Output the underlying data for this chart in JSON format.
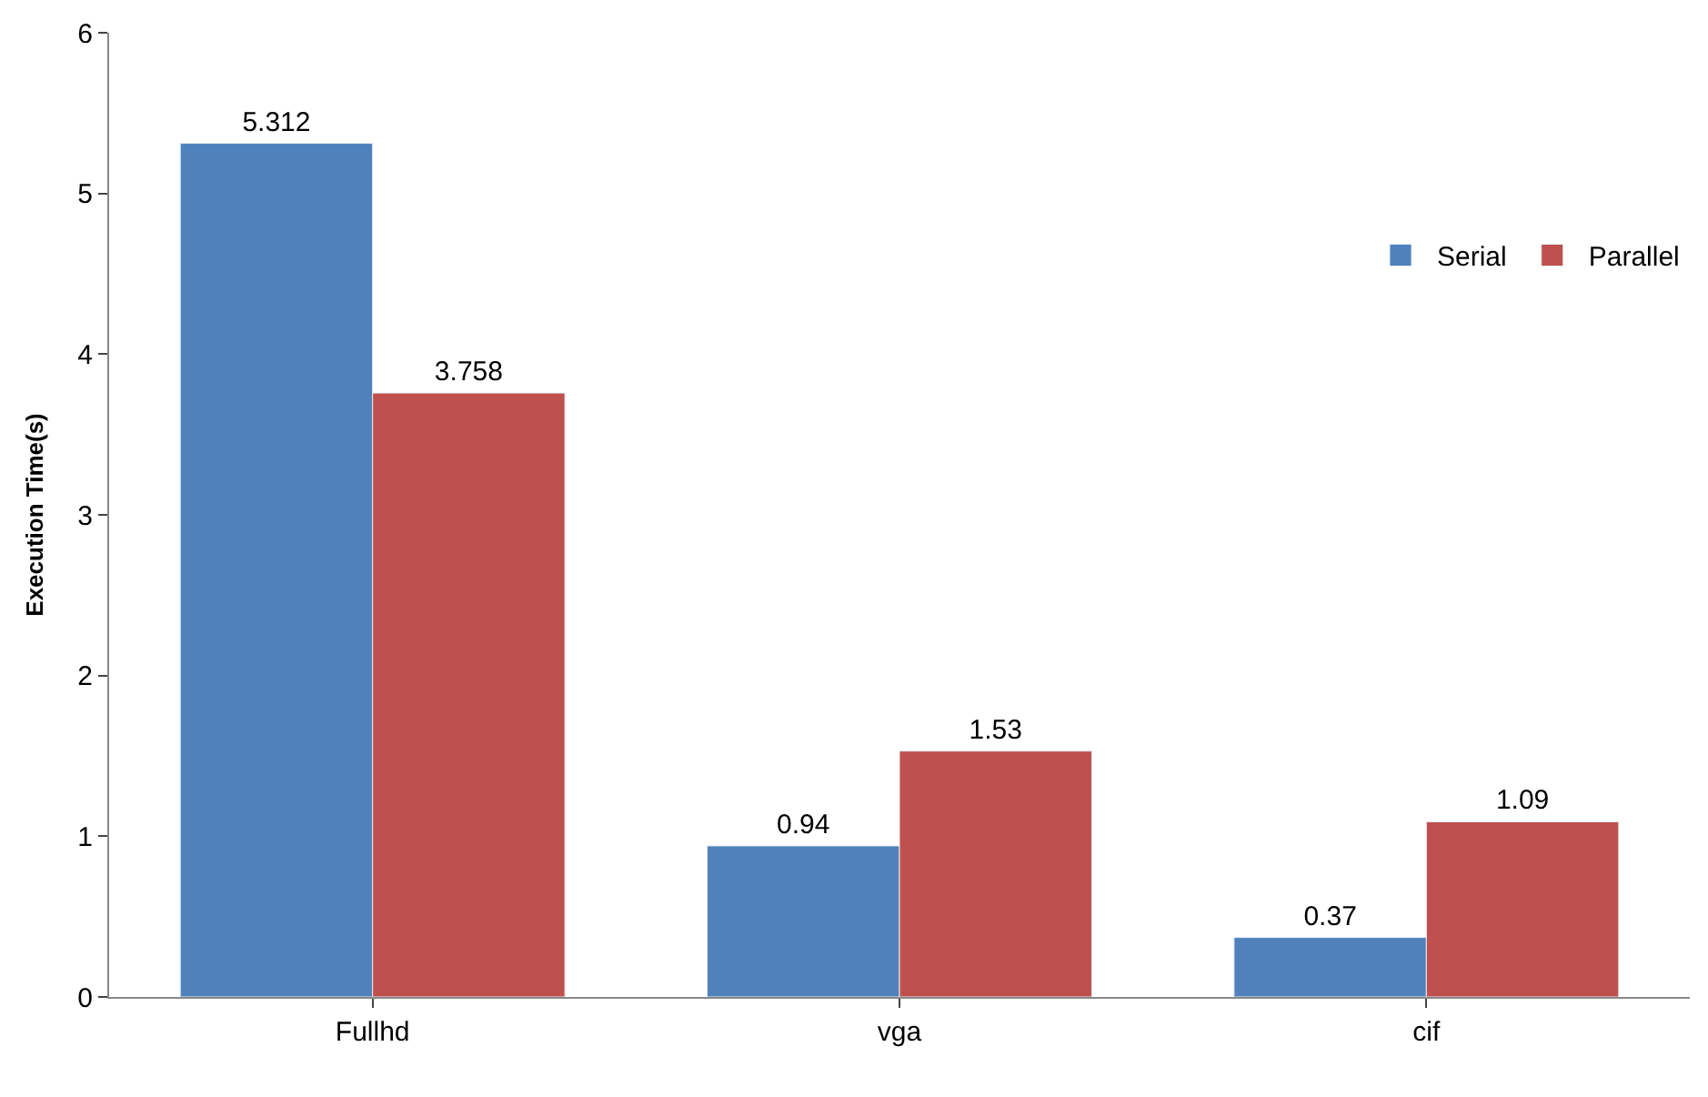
{
  "chart_data": {
    "type": "bar",
    "ylabel": "Execution Time(s)",
    "categories": [
      "Fullhd",
      "vga",
      "cif"
    ],
    "series": [
      {
        "name": "Serial",
        "color": "#4f81bd",
        "values": [
          5.312,
          0.94,
          0.37
        ]
      },
      {
        "name": "Parallel",
        "color": "#c0504d",
        "values": [
          3.758,
          1.53,
          1.09
        ]
      }
    ],
    "ylim": [
      0,
      6
    ],
    "yticks": [
      0,
      1,
      2,
      3,
      4,
      5,
      6
    ],
    "legend": "top right",
    "data_labels": true
  }
}
